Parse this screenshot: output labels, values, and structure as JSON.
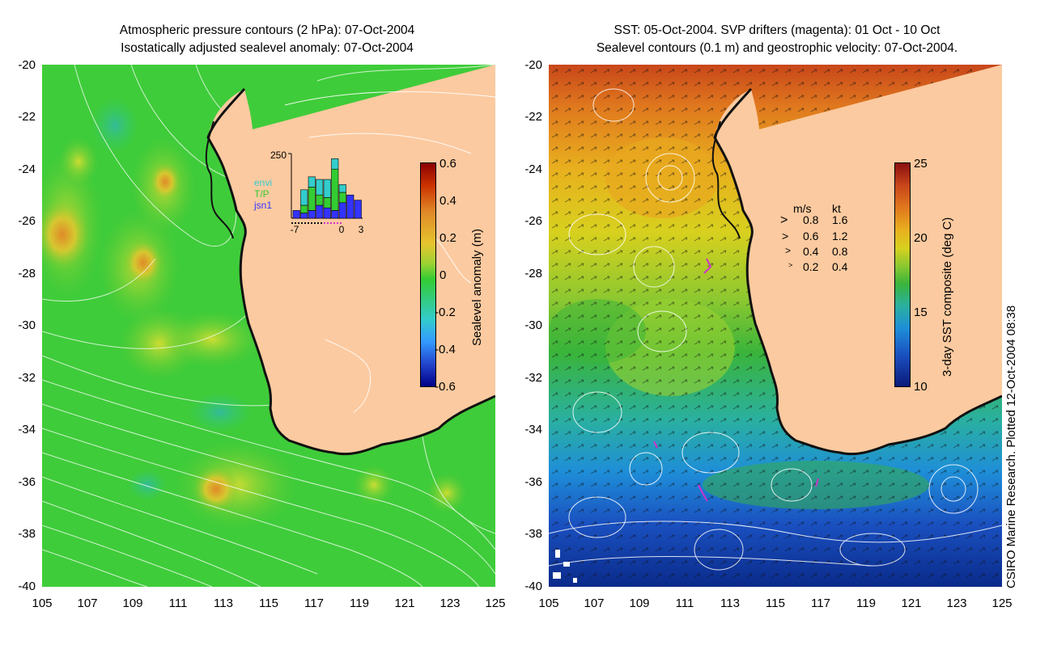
{
  "left_panel": {
    "title_line1": "Atmospheric pressure contours (2 hPa): 07-Oct-2004",
    "title_line2": "Isostatically adjusted sealevel anomaly: 07-Oct-2004",
    "y_ticks": [
      "-20",
      "-22",
      "-24",
      "-26",
      "-28",
      "-30",
      "-32",
      "-34",
      "-36",
      "-38",
      "-40"
    ],
    "x_ticks": [
      "105",
      "107",
      "109",
      "111",
      "113",
      "115",
      "117",
      "119",
      "121",
      "123",
      "125"
    ],
    "colorbar": {
      "label": "Sealevel anomaly (m)",
      "ticks": [
        "0.6",
        "0.4",
        "0.2",
        "0",
        "-0.2",
        "-0.4",
        "-0.6"
      ]
    },
    "inset": {
      "ymax_label": "250",
      "x_labels": [
        "-7",
        "0",
        "3"
      ],
      "legend": [
        {
          "name": "envi",
          "color": "#33cccc"
        },
        {
          "name": "T/P",
          "color": "#33cc33"
        },
        {
          "name": "jsn1",
          "color": "#3333ff"
        }
      ],
      "bars": [
        {
          "day": -7,
          "envi": 0,
          "tp": 0,
          "jsn1": 30
        },
        {
          "day": -6,
          "envi": 60,
          "tp": 30,
          "jsn1": 20
        },
        {
          "day": -5,
          "envi": 40,
          "tp": 90,
          "jsn1": 30
        },
        {
          "day": -4,
          "envi": 60,
          "tp": 40,
          "jsn1": 50
        },
        {
          "day": -3,
          "envi": 70,
          "tp": 40,
          "jsn1": 40
        },
        {
          "day": -2,
          "envi": 40,
          "tp": 160,
          "jsn1": 30
        },
        {
          "day": -1,
          "envi": 30,
          "tp": 40,
          "jsn1": 60
        },
        {
          "day": 0,
          "envi": 0,
          "tp": 0,
          "jsn1": 90
        },
        {
          "day": 1,
          "envi": 0,
          "tp": 0,
          "jsn1": 70
        }
      ]
    }
  },
  "right_panel": {
    "title_line1": "SST: 05-Oct-2004. SVP drifters (magenta): 01 Oct - 10 Oct",
    "title_line2": "Sealevel contours (0.1 m) and geostrophic velocity: 07-Oct-2004.",
    "y_ticks": [
      "-20",
      "-22",
      "-24",
      "-26",
      "-28",
      "-30",
      "-32",
      "-34",
      "-36",
      "-38",
      "-40"
    ],
    "x_ticks": [
      "105",
      "107",
      "109",
      "111",
      "113",
      "115",
      "117",
      "119",
      "121",
      "123",
      "125"
    ],
    "colorbar": {
      "label": "3-day SST composite (deg C)",
      "ticks": [
        "25",
        "20",
        "15",
        "10"
      ]
    },
    "velocity_legend": {
      "header_ms": "m/s",
      "header_kt": "kt",
      "rows": [
        {
          "ms": "0.8",
          "kt": "1.6"
        },
        {
          "ms": "0.6",
          "kt": "1.2"
        },
        {
          "ms": "0.4",
          "kt": "0.8"
        },
        {
          "ms": "0.2",
          "kt": "0.4"
        }
      ]
    }
  },
  "credit": "CSIRO Marine Research. Plotted 12-Oct-2004 08:38",
  "colors": {
    "land": "#fccaa0",
    "coast": "#111111",
    "anomaly_base": "#33cc33",
    "drifter": "#cc33cc"
  }
}
